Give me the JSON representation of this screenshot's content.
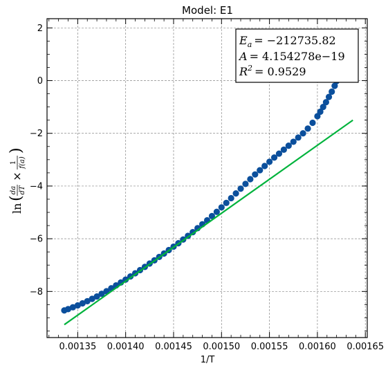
{
  "chart_data": {
    "type": "scatter",
    "title": "Model: E1",
    "xlabel": "1/T",
    "ylabel": "ln(da/dT × 1/f(a))",
    "xlim": [
      0.001318,
      0.001652
    ],
    "ylim": [
      -9.75,
      2.35
    ],
    "xticks": [
      0.00135,
      0.0014,
      0.00145,
      0.0015,
      0.00155,
      0.0016,
      0.00165
    ],
    "xtick_labels": [
      "0.00135",
      "0.00140",
      "0.00145",
      "0.00150",
      "0.00155",
      "0.00160",
      "0.00165"
    ],
    "yticks": [
      -8,
      -6,
      -4,
      -2,
      0,
      2
    ],
    "ytick_labels": [
      "−8",
      "−6",
      "−4",
      "−2",
      "0",
      "2"
    ],
    "grid": true,
    "series": [
      {
        "kind": "scatter",
        "color": "#0b4f9c",
        "x": [
          0.001336,
          0.00134,
          0.001345,
          0.00135,
          0.001355,
          0.00136,
          0.001365,
          0.00137,
          0.001375,
          0.00138,
          0.001385,
          0.00139,
          0.001395,
          0.0014,
          0.001405,
          0.00141,
          0.001415,
          0.00142,
          0.001425,
          0.00143,
          0.001435,
          0.00144,
          0.001445,
          0.00145,
          0.001455,
          0.00146,
          0.001465,
          0.00147,
          0.001475,
          0.00148,
          0.001485,
          0.00149,
          0.001495,
          0.0015,
          0.001505,
          0.00151,
          0.001515,
          0.00152,
          0.001525,
          0.00153,
          0.001535,
          0.00154,
          0.001545,
          0.00155,
          0.001555,
          0.00156,
          0.001565,
          0.00157,
          0.001575,
          0.00158,
          0.001585,
          0.00159,
          0.001595,
          0.0016,
          0.001603,
          0.001606,
          0.001609,
          0.001612,
          0.001615,
          0.001618,
          0.00162,
          0.001622,
          0.001624,
          0.001626,
          0.001628,
          0.00163,
          0.001632,
          0.001634
        ],
        "y": [
          -8.72,
          -8.67,
          -8.6,
          -8.53,
          -8.45,
          -8.37,
          -8.28,
          -8.19,
          -8.09,
          -7.99,
          -7.88,
          -7.77,
          -7.66,
          -7.55,
          -7.43,
          -7.31,
          -7.19,
          -7.07,
          -6.94,
          -6.82,
          -6.69,
          -6.56,
          -6.43,
          -6.3,
          -6.17,
          -6.03,
          -5.89,
          -5.75,
          -5.6,
          -5.45,
          -5.3,
          -5.14,
          -4.98,
          -4.81,
          -4.64,
          -4.46,
          -4.28,
          -4.1,
          -3.92,
          -3.74,
          -3.56,
          -3.4,
          -3.24,
          -3.08,
          -2.92,
          -2.77,
          -2.62,
          -2.47,
          -2.32,
          -2.16,
          -2.0,
          -1.82,
          -1.6,
          -1.35,
          -1.18,
          -1.0,
          -0.82,
          -0.62,
          -0.42,
          -0.2,
          -0.02,
          0.16,
          0.36,
          0.58,
          0.8,
          1.02,
          1.26,
          1.5
        ]
      },
      {
        "kind": "line",
        "color": "#00b33c",
        "x": [
          0.001336,
          0.001637
        ],
        "y": [
          -9.26,
          -1.5
        ]
      }
    ],
    "annotations": [
      "E_a = −212735.82",
      "A = 4.154278e−19",
      "R² = 0.9529"
    ]
  },
  "annotation_lines": {
    "ea_sym": "E",
    "ea_sub": "a",
    "ea_val": "= −212735.82",
    "a_sym": "A",
    "a_val": "= 4.154278e−19",
    "r_sym": "R",
    "r_sup": "2",
    "r_val": "= 0.9529"
  },
  "ylabel_parts": {
    "ln": "ln",
    "frac1_num": "da",
    "frac1_den": "dT",
    "times": "×",
    "frac2_num": "1",
    "frac2_den": "f(a)"
  }
}
